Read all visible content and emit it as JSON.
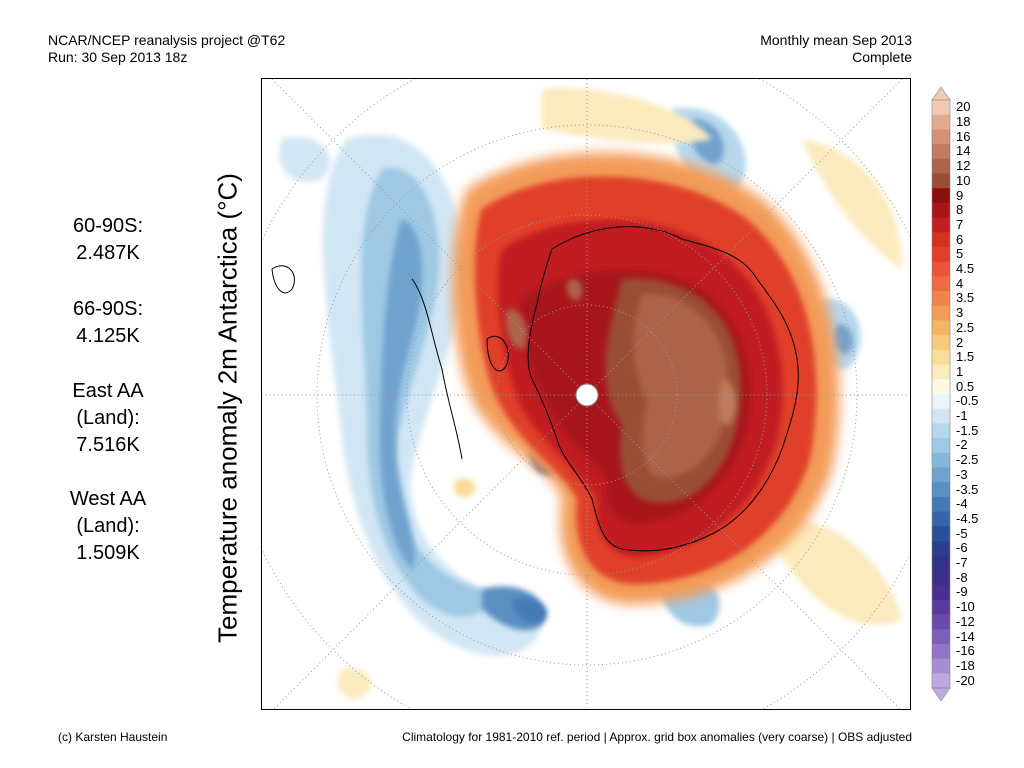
{
  "header": {
    "left_line1": "NCAR/NCEP reanalysis project @T62",
    "left_line2": "Run: 30 Sep 2013 18z",
    "right_line1": "Monthly mean Sep 2013",
    "right_line2": "Complete"
  },
  "side_label": "Temperature anomaly 2m Antarctica (°C)",
  "stats": [
    {
      "label": "60-90S:",
      "value": "2.487K"
    },
    {
      "label": "66-90S:",
      "value": "4.125K"
    },
    {
      "label_line1": "East AA",
      "label_line2": "(Land):",
      "value": "7.516K"
    },
    {
      "label_line1": "West AA",
      "label_line2": "(Land):",
      "value": "1.509K"
    }
  ],
  "colorbar": {
    "labels": [
      "20",
      "18",
      "16",
      "14",
      "12",
      "10",
      "9",
      "8",
      "7",
      "6",
      "5",
      "4.5",
      "4",
      "3.5",
      "3",
      "2.5",
      "2",
      "1.5",
      "1",
      "0.5",
      "-0.5",
      "-1",
      "-1.5",
      "-2",
      "-2.5",
      "-3",
      "-3.5",
      "-4",
      "-4.5",
      "-5",
      "-6",
      "-7",
      "-8",
      "-9",
      "-10",
      "-12",
      "-14",
      "-16",
      "-18",
      "-20"
    ],
    "colors": [
      "#f1c9b6",
      "#e2aa8e",
      "#d39273",
      "#c07a5d",
      "#ad6448",
      "#9a4d36",
      "#8c0f10",
      "#a8151a",
      "#c11f23",
      "#d7301f",
      "#e0402a",
      "#e8553a",
      "#ee6b42",
      "#f1834d",
      "#f39b58",
      "#f5b366",
      "#f6c97c",
      "#f8dc98",
      "#fbeabd",
      "#fef8e6",
      "#e9f4fb",
      "#d1e6f4",
      "#b6d7ec",
      "#9ec8e4",
      "#86b6da",
      "#70a2ce",
      "#5a8fc2",
      "#4779b6",
      "#3664a8",
      "#2b509b",
      "#2b3f8d",
      "#333384",
      "#3d2e87",
      "#4a2f91",
      "#5a3a9e",
      "#6a4aaa",
      "#7c5fb7",
      "#9075c4",
      "#a78dd2",
      "#bfa8df"
    ]
  },
  "footer": {
    "left": "(c) Karsten Haustein",
    "right": "Climatology for 1981-2010 ref. period | Approx. grid box anomalies (very coarse) | OBS adjusted"
  }
}
